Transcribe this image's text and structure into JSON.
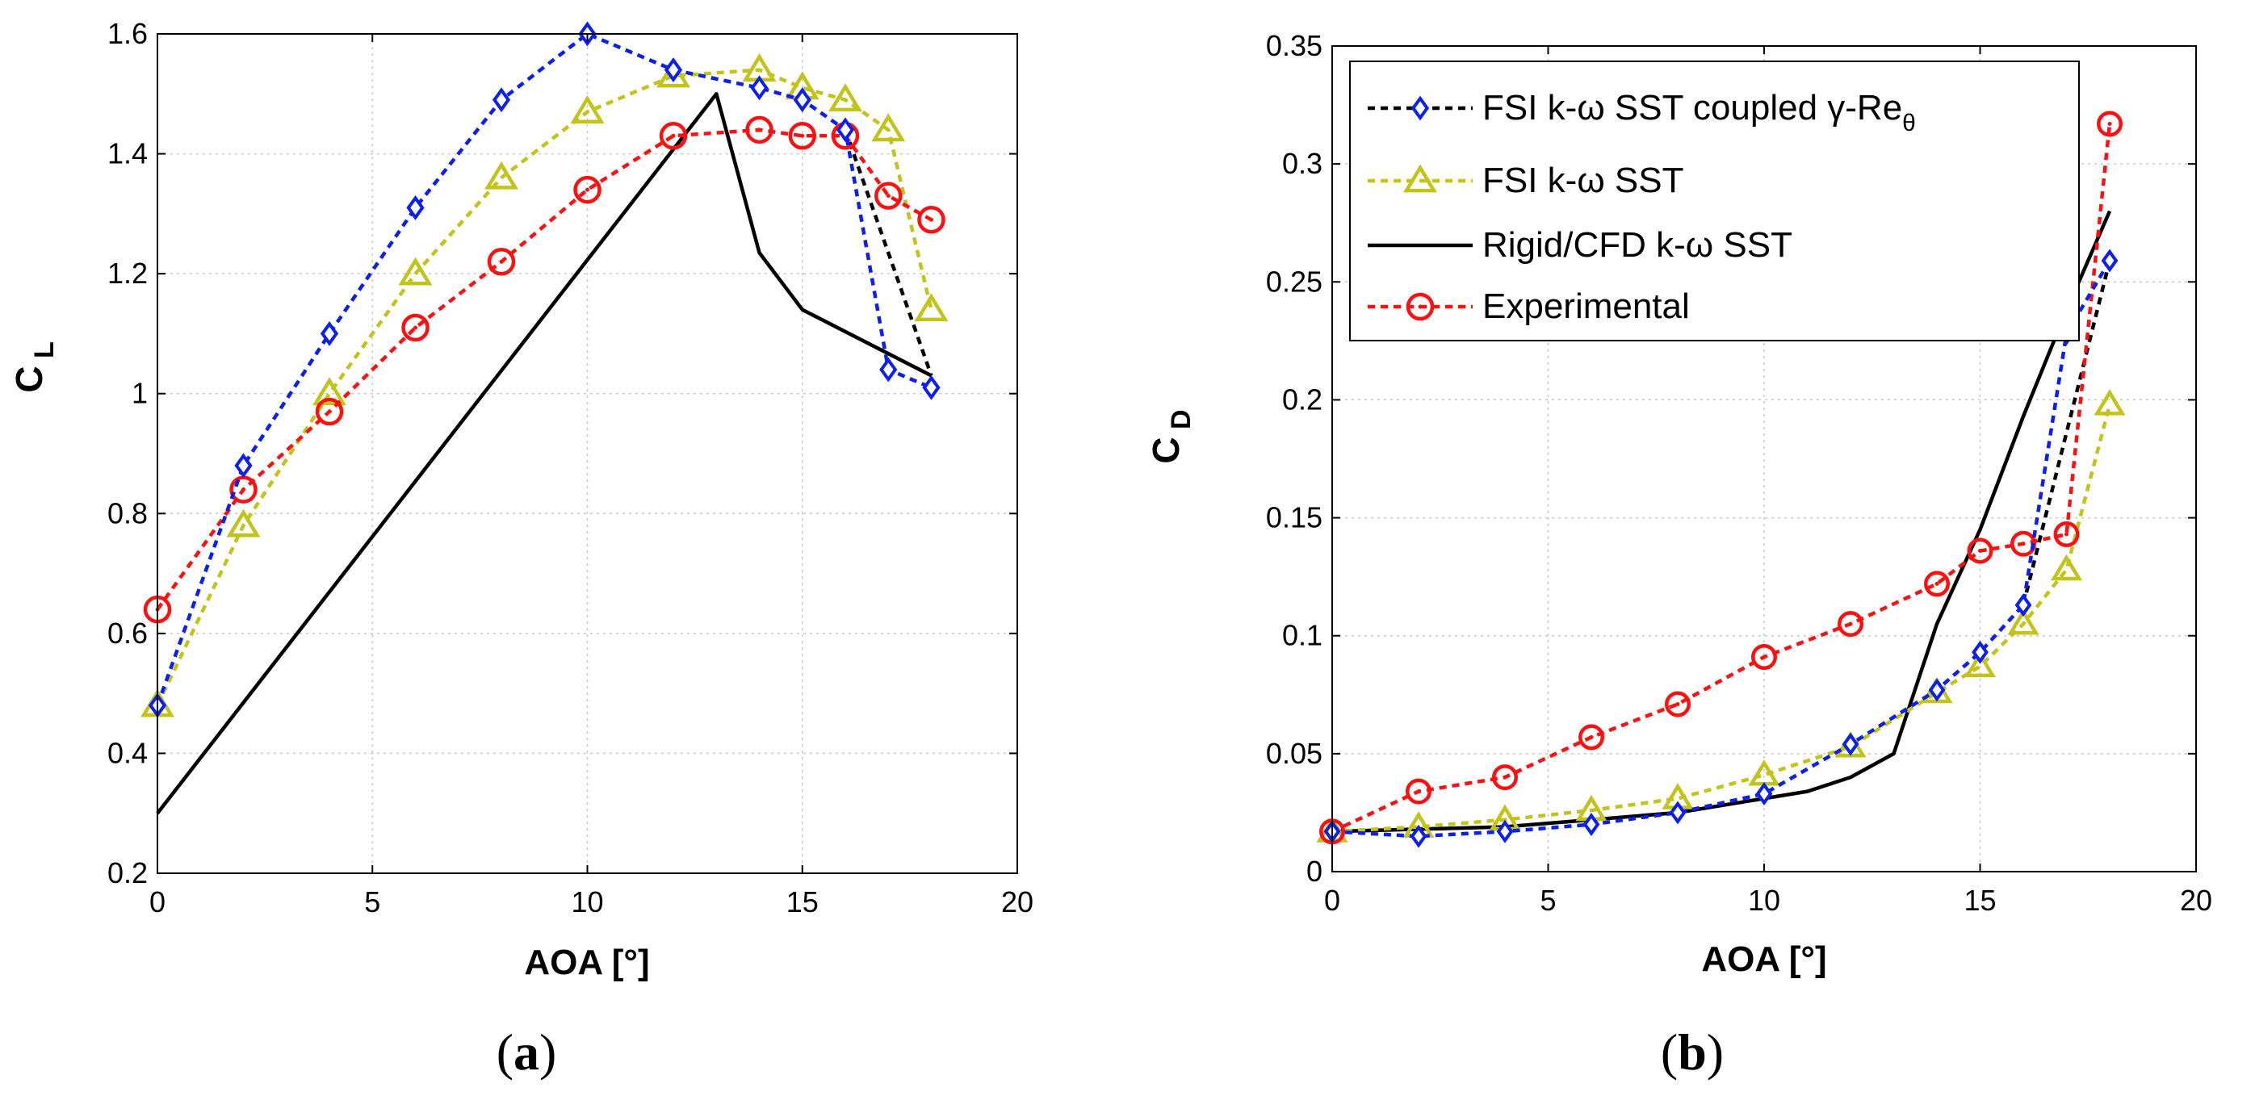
{
  "chart_data": [
    {
      "id": "a",
      "type": "line",
      "panel_label": "a",
      "xlabel": "AOA  [°]",
      "ylabel": "C",
      "ylabel_sub": "L",
      "xlim": [
        0,
        20
      ],
      "ylim": [
        0.2,
        1.6
      ],
      "xticks": [
        0,
        5,
        10,
        15,
        20
      ],
      "xtick_labels": [
        "0",
        "5",
        "10",
        "15",
        "20"
      ],
      "yticks": [
        0.2,
        0.4,
        0.6,
        0.8,
        1.0,
        1.2,
        1.4,
        1.6
      ],
      "ytick_labels": [
        "0.2",
        "0.4",
        "0.6",
        "0.8",
        "1",
        "1.2",
        "1.4",
        "1.6"
      ],
      "grid": true,
      "series": [
        {
          "key": "rigid",
          "x": [
            0,
            13,
            14,
            15,
            18
          ],
          "y": [
            0.3,
            1.5,
            1.235,
            1.14,
            1.03
          ]
        },
        {
          "key": "fsi_coupled_tail",
          "x": [
            16,
            18
          ],
          "y": [
            1.44,
            1.03
          ]
        },
        {
          "key": "fsi_sst",
          "x": [
            0,
            2,
            4,
            6,
            8,
            10,
            12,
            14,
            15,
            16,
            17,
            18
          ],
          "y": [
            0.48,
            0.78,
            1.0,
            1.2,
            1.36,
            1.47,
            1.53,
            1.54,
            1.51,
            1.49,
            1.44,
            1.14
          ]
        },
        {
          "key": "experimental",
          "x": [
            0,
            2,
            4,
            6,
            8,
            10,
            12,
            14,
            15,
            16,
            17,
            18
          ],
          "y": [
            0.64,
            0.84,
            0.97,
            1.11,
            1.22,
            1.34,
            1.43,
            1.44,
            1.43,
            1.43,
            1.33,
            1.29
          ]
        },
        {
          "key": "fsi_coupled",
          "x": [
            0,
            2,
            4,
            6,
            8,
            10,
            12,
            14,
            15,
            16,
            17,
            18
          ],
          "y": [
            0.48,
            0.88,
            1.1,
            1.31,
            1.49,
            1.6,
            1.54,
            1.51,
            1.49,
            1.44,
            1.04,
            1.01
          ]
        }
      ]
    },
    {
      "id": "b",
      "type": "line",
      "panel_label": "b",
      "xlabel": "AOA  [°]",
      "ylabel": "C",
      "ylabel_sub": "D",
      "xlim": [
        0,
        20
      ],
      "ylim": [
        0,
        0.35
      ],
      "xticks": [
        0,
        5,
        10,
        15,
        20
      ],
      "xtick_labels": [
        "0",
        "5",
        "10",
        "15",
        "20"
      ],
      "yticks": [
        0,
        0.05,
        0.1,
        0.15,
        0.2,
        0.25,
        0.3,
        0.35
      ],
      "ytick_labels": [
        "0",
        "0.05",
        "0.1",
        "0.15",
        "0.2",
        "0.25",
        "0.3",
        "0.35"
      ],
      "grid": true,
      "legend_position": "top-left",
      "series": [
        {
          "key": "rigid",
          "x": [
            0,
            2,
            4,
            6,
            8,
            10,
            11,
            12,
            13,
            14,
            15,
            16,
            17,
            18
          ],
          "y": [
            0.017,
            0.018,
            0.019,
            0.022,
            0.025,
            0.031,
            0.034,
            0.04,
            0.05,
            0.105,
            0.145,
            0.193,
            0.238,
            0.28
          ]
        },
        {
          "key": "fsi_coupled_tail",
          "x": [
            16,
            18
          ],
          "y": [
            0.113,
            0.259
          ]
        },
        {
          "key": "fsi_sst",
          "x": [
            0,
            2,
            4,
            6,
            8,
            10,
            12,
            14,
            15,
            16,
            17,
            18
          ],
          "y": [
            0.017,
            0.019,
            0.022,
            0.026,
            0.031,
            0.041,
            0.053,
            0.076,
            0.087,
            0.105,
            0.128,
            0.198
          ]
        },
        {
          "key": "experimental",
          "x": [
            0,
            2,
            4,
            6,
            8,
            10,
            12,
            14,
            15,
            16,
            17,
            18
          ],
          "y": [
            0.017,
            0.034,
            0.04,
            0.057,
            0.071,
            0.091,
            0.105,
            0.122,
            0.136,
            0.139,
            0.143,
            0.317
          ]
        },
        {
          "key": "fsi_coupled",
          "x": [
            0,
            2,
            4,
            6,
            8,
            10,
            12,
            14,
            15,
            16,
            17,
            18
          ],
          "y": [
            0.017,
            0.015,
            0.017,
            0.02,
            0.025,
            0.033,
            0.054,
            0.077,
            0.093,
            0.113,
            0.228,
            0.259
          ]
        }
      ]
    }
  ],
  "legend": {
    "entries": [
      {
        "key": "fsi_coupled",
        "label": "FSI k-ω SST coupled γ-Re",
        "subscript": "θ"
      },
      {
        "key": "fsi_sst",
        "label": "FSI k-ω SST"
      },
      {
        "key": "rigid",
        "label": "Rigid/CFD k-ω SST"
      },
      {
        "key": "experimental",
        "label": "Experimental"
      }
    ]
  },
  "styles": {
    "fsi_coupled": {
      "color": "#0a1ff0",
      "dash": true,
      "marker": "diamond"
    },
    "fsi_coupled_tail": {
      "color": "#000000",
      "dash": true,
      "marker": "none"
    },
    "fsi_sst": {
      "color": "#c2c41a",
      "dash": true,
      "marker": "triangle"
    },
    "rigid": {
      "color": "#000000",
      "dash": false,
      "marker": "none"
    },
    "experimental": {
      "color": "#ff1010",
      "dash": true,
      "marker": "circle"
    }
  }
}
